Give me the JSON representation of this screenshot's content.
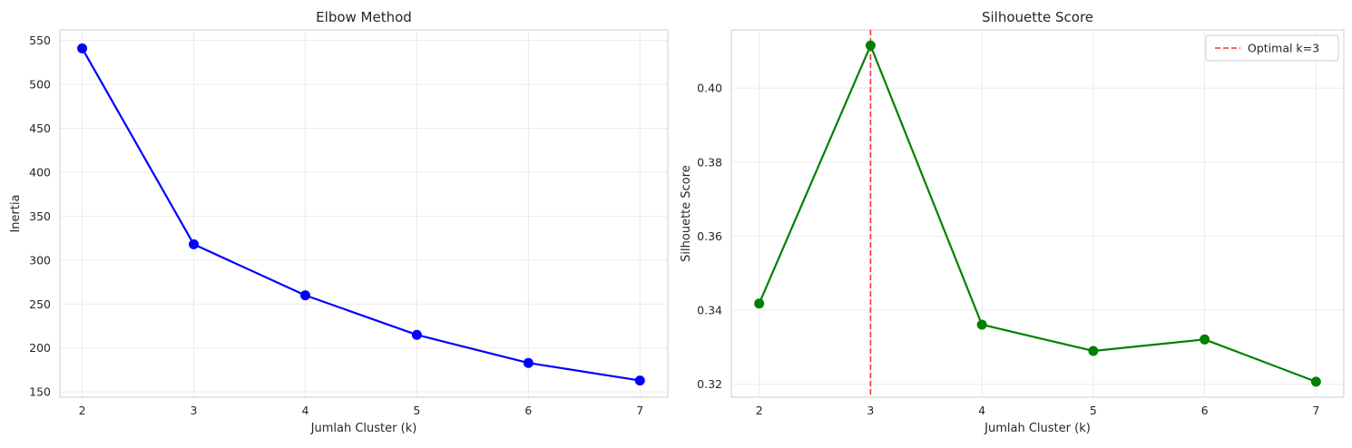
{
  "chart_data": [
    {
      "type": "line",
      "title": "Elbow Method",
      "xlabel": "Jumlah Cluster (k)",
      "ylabel": "Inertia",
      "x": [
        2,
        3,
        4,
        5,
        6,
        7
      ],
      "series": [
        {
          "values": [
            541,
            318,
            260,
            215,
            183,
            163
          ],
          "color": "#0000ff",
          "marker": "circle"
        }
      ],
      "xlim": [
        1.8,
        7.25
      ],
      "ylim": [
        144,
        562
      ],
      "xticks": [
        "2",
        "3",
        "4",
        "5",
        "6",
        "7"
      ],
      "yticks": [
        "150",
        "200",
        "250",
        "300",
        "350",
        "400",
        "450",
        "500",
        "550"
      ],
      "grid": true
    },
    {
      "type": "line",
      "title": "Silhouette Score",
      "xlabel": "Jumlah Cluster (k)",
      "ylabel": "Silhouette Score",
      "x": [
        2,
        3,
        4,
        5,
        6,
        7
      ],
      "series": [
        {
          "values": [
            0.3418,
            0.4115,
            0.3361,
            0.329,
            0.3321,
            0.3207
          ],
          "color": "#008000",
          "marker": "circle"
        }
      ],
      "xlim": [
        1.75,
        7.25
      ],
      "ylim": [
        0.3165,
        0.4157
      ],
      "xticks": [
        "2",
        "3",
        "4",
        "5",
        "6",
        "7"
      ],
      "yticks": [
        "0.32",
        "0.34",
        "0.36",
        "0.38",
        "0.40"
      ],
      "grid": true,
      "reference_line": {
        "x": 3,
        "color": "#ff0000",
        "style": "dashed",
        "label": "Optimal k=3"
      },
      "legend": {
        "position": "top-right",
        "entries": [
          "Optimal k=3"
        ]
      }
    }
  ]
}
